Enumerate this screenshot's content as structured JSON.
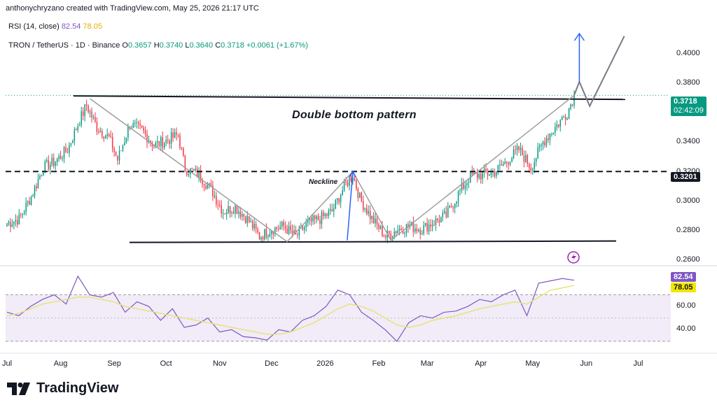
{
  "header": {
    "credit": "anthonychryzano created with TradingView.com, May 25, 2026 21:17 UTC"
  },
  "rsi_legend": {
    "label": "RSI (14, close)",
    "value_rsi": "82.54",
    "value_ma": "78.05"
  },
  "symbol_legend": {
    "label": "TRON / TetherUS · 1D · Binance",
    "o_k": "O",
    "o": "0.3657",
    "h_k": "H",
    "h": "0.3740",
    "l_k": "L",
    "l": "0.3640",
    "c_k": "C",
    "c": "0.3718",
    "change": "+0.0061 (+1.67%)"
  },
  "annotations": {
    "pattern": "Double bottom pattern",
    "neckline": "Neckline"
  },
  "price_tag": {
    "value": "0.3718",
    "countdown": "02:42:09"
  },
  "neckline_tag": "0.3201",
  "rsi_tags": {
    "rsi": "82.54",
    "ma": "78.05"
  },
  "brand": {
    "name": "TradingView"
  },
  "colors": {
    "up": "#089981",
    "down": "#f23645",
    "rsi": "#7e57c2",
    "rsi_ma": "#e8e27a",
    "arrow": "#2962ff",
    "path": "#787b86"
  },
  "chart_data": [
    {
      "type": "candlestick",
      "title": "TRON / TetherUS · 1D · Binance",
      "y_ticks": [
        "0.4000",
        "0.3800",
        "0.3600",
        "0.3400",
        "0.3200",
        "0.3000",
        "0.2800",
        "0.2600"
      ],
      "ylim": [
        0.26,
        0.408
      ],
      "x_ticks": [
        "Jul",
        "Aug",
        "Sep",
        "Oct",
        "Nov",
        "Dec",
        "2026",
        "Feb",
        "Mar",
        "Apr",
        "May",
        "Jun",
        "Jul"
      ],
      "close_series": [
        {
          "date": "2025-07-01",
          "close": 0.285
        },
        {
          "date": "2025-07-08",
          "close": 0.288
        },
        {
          "date": "2025-07-15",
          "close": 0.303
        },
        {
          "date": "2025-07-22",
          "close": 0.323
        },
        {
          "date": "2025-07-29",
          "close": 0.327
        },
        {
          "date": "2025-08-05",
          "close": 0.335
        },
        {
          "date": "2025-08-12",
          "close": 0.355
        },
        {
          "date": "2025-08-16",
          "close": 0.365
        },
        {
          "date": "2025-08-22",
          "close": 0.35
        },
        {
          "date": "2025-08-29",
          "close": 0.343
        },
        {
          "date": "2025-09-03",
          "close": 0.328
        },
        {
          "date": "2025-09-10",
          "close": 0.352
        },
        {
          "date": "2025-09-17",
          "close": 0.348
        },
        {
          "date": "2025-09-24",
          "close": 0.338
        },
        {
          "date": "2025-10-01",
          "close": 0.341
        },
        {
          "date": "2025-10-08",
          "close": 0.345
        },
        {
          "date": "2025-10-12",
          "close": 0.322
        },
        {
          "date": "2025-10-20",
          "close": 0.318
        },
        {
          "date": "2025-10-27",
          "close": 0.308
        },
        {
          "date": "2025-11-03",
          "close": 0.293
        },
        {
          "date": "2025-11-10",
          "close": 0.296
        },
        {
          "date": "2025-11-17",
          "close": 0.288
        },
        {
          "date": "2025-11-24",
          "close": 0.276
        },
        {
          "date": "2025-12-01",
          "close": 0.281
        },
        {
          "date": "2025-12-08",
          "close": 0.283
        },
        {
          "date": "2025-12-15",
          "close": 0.276
        },
        {
          "date": "2025-12-22",
          "close": 0.285
        },
        {
          "date": "2025-12-29",
          "close": 0.288
        },
        {
          "date": "2026-01-05",
          "close": 0.293
        },
        {
          "date": "2026-01-12",
          "close": 0.31
        },
        {
          "date": "2026-01-17",
          "close": 0.318
        },
        {
          "date": "2026-01-21",
          "close": 0.302
        },
        {
          "date": "2026-01-28",
          "close": 0.288
        },
        {
          "date": "2026-02-05",
          "close": 0.276
        },
        {
          "date": "2026-02-12",
          "close": 0.281
        },
        {
          "date": "2026-02-19",
          "close": 0.283
        },
        {
          "date": "2026-02-26",
          "close": 0.281
        },
        {
          "date": "2026-03-05",
          "close": 0.286
        },
        {
          "date": "2026-03-12",
          "close": 0.29
        },
        {
          "date": "2026-03-19",
          "close": 0.305
        },
        {
          "date": "2026-03-26",
          "close": 0.317
        },
        {
          "date": "2026-04-02",
          "close": 0.318
        },
        {
          "date": "2026-04-09",
          "close": 0.32
        },
        {
          "date": "2026-04-16",
          "close": 0.327
        },
        {
          "date": "2026-04-23",
          "close": 0.335
        },
        {
          "date": "2026-04-30",
          "close": 0.323
        },
        {
          "date": "2026-05-07",
          "close": 0.34
        },
        {
          "date": "2026-05-14",
          "close": 0.35
        },
        {
          "date": "2026-05-21",
          "close": 0.36
        },
        {
          "date": "2026-05-25",
          "close": 0.3718
        }
      ],
      "levels": [
        {
          "name": "resistance",
          "value": 0.3695
        },
        {
          "name": "neckline",
          "value": 0.3201
        },
        {
          "name": "support",
          "value": 0.2725
        }
      ]
    },
    {
      "type": "line",
      "title": "RSI (14, close)",
      "y_ticks": [
        "80.00",
        "60.00",
        "40.00"
      ],
      "ylim": [
        27,
        92
      ],
      "bands": [
        30,
        70
      ],
      "series": [
        {
          "name": "RSI",
          "values": [
            55,
            52,
            60,
            66,
            70,
            62,
            86,
            70,
            68,
            72,
            55,
            64,
            60,
            48,
            58,
            42,
            44,
            50,
            38,
            40,
            34,
            33,
            31,
            40,
            38,
            48,
            52,
            60,
            74,
            70,
            55,
            48,
            40,
            30,
            46,
            52,
            50,
            55,
            56,
            60,
            66,
            64,
            70,
            74,
            52,
            80,
            82,
            84,
            82.54
          ]
        },
        {
          "name": "RSI MA",
          "values": [
            52,
            54,
            58,
            62,
            64,
            66,
            68,
            68,
            66,
            64,
            60,
            58,
            56,
            54,
            52,
            50,
            48,
            46,
            44,
            42,
            40,
            38,
            36,
            36,
            38,
            42,
            46,
            52,
            58,
            62,
            60,
            56,
            50,
            44,
            42,
            44,
            48,
            50,
            52,
            55,
            58,
            60,
            62,
            64,
            62,
            68,
            74,
            76,
            78.05
          ]
        }
      ]
    }
  ]
}
